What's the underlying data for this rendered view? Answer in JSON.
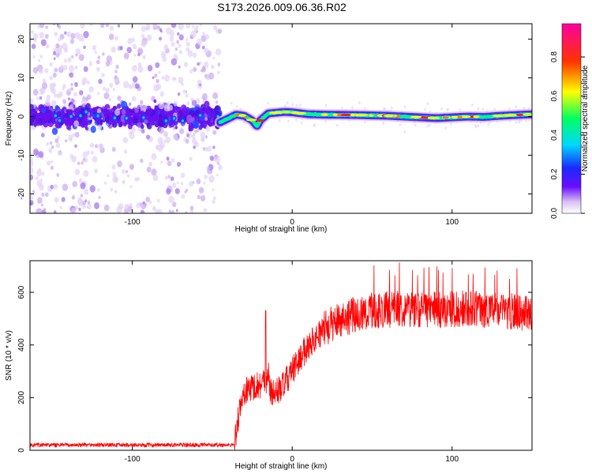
{
  "title": "S173.2026.009.06.36.R02",
  "chart_data": [
    {
      "type": "heatmap",
      "xlabel": "Height of straight line (km)",
      "ylabel": "Frequency (Hz)",
      "xlim": [
        -164,
        150
      ],
      "ylim": [
        -25,
        24
      ],
      "x_ticks": [
        -100,
        0,
        100
      ],
      "y_ticks": [
        -20,
        -10,
        0,
        10,
        20
      ],
      "colorbar": {
        "label": "Normalized spectral amplitude",
        "range": [
          0,
          0.97
        ],
        "ticks": [
          0.0,
          0.2,
          0.4,
          0.6,
          0.8
        ]
      },
      "ridge": {
        "x": [
          -45,
          -40,
          -35,
          -30,
          -25,
          -22,
          -20,
          -15,
          -10,
          -5,
          0,
          10,
          20,
          40,
          60,
          80,
          90,
          100,
          110,
          120,
          130,
          140,
          150
        ],
        "y": [
          -1.5,
          -0.5,
          0.5,
          0.2,
          -1.0,
          -2.5,
          -1.0,
          0.8,
          1.0,
          1.2,
          1.1,
          0.6,
          0.5,
          0.4,
          0.2,
          -0.2,
          -0.4,
          -0.2,
          0.0,
          -0.1,
          0.2,
          0.4,
          0.6
        ]
      },
      "noise_region_x": [
        -164,
        -45
      ]
    },
    {
      "type": "line",
      "xlabel": "Height of straight line (km)",
      "ylabel": "SNR (10 * v/v)",
      "xlim": [
        -164,
        150
      ],
      "ylim": [
        0,
        720
      ],
      "x_ticks": [
        -100,
        0,
        100
      ],
      "y_ticks": [
        0,
        200,
        400,
        600
      ],
      "color": "#ff0000",
      "envelope": {
        "x": [
          -164,
          -36,
          -34,
          -30,
          -25,
          -20,
          -16,
          -15,
          -14,
          -10,
          -5,
          0,
          5,
          10,
          20,
          30,
          50,
          70,
          90,
          110,
          130,
          150
        ],
        "y": [
          20,
          20,
          120,
          220,
          240,
          250,
          270,
          310,
          220,
          220,
          250,
          300,
          350,
          400,
          460,
          500,
          530,
          540,
          530,
          540,
          530,
          520
        ]
      }
    }
  ]
}
